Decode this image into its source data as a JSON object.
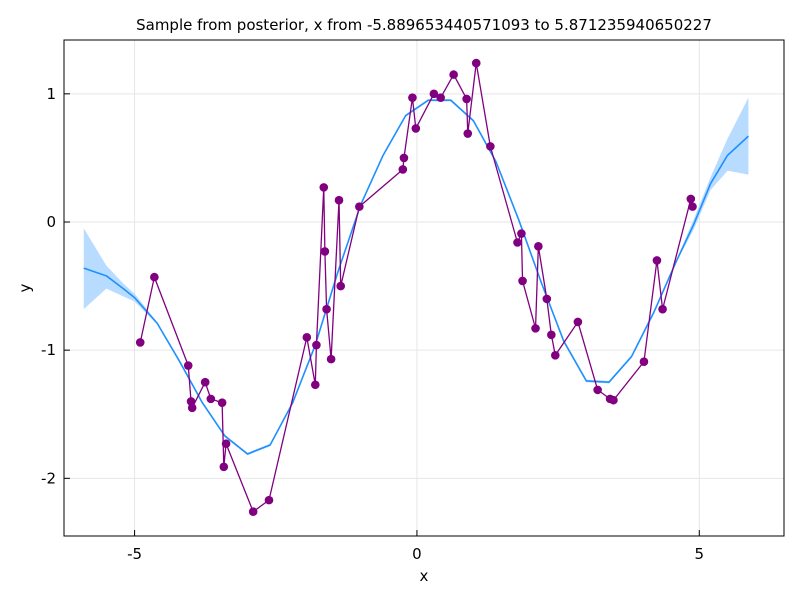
{
  "chart_data": {
    "type": "line",
    "title": "Sample from posterior, x from -5.889653440571093 to 5.871235940650227",
    "xlabel": "x",
    "ylabel": "y",
    "xlim": [
      -6.25,
      6.5
    ],
    "ylim": [
      -2.45,
      1.42
    ],
    "x_ticks": [
      -5,
      0,
      5
    ],
    "x_tick_labels": [
      "-5",
      "0",
      "5"
    ],
    "y_ticks": [
      -2,
      -1,
      0,
      1
    ],
    "y_tick_labels": [
      "-2",
      "-1",
      "0",
      "1"
    ],
    "grid": true,
    "legend": "none",
    "colors": {
      "samples": "#800080",
      "mean": "#1e90ff",
      "band": "#b8dcff",
      "grid": "#e6e6e6",
      "frame": "#000000"
    },
    "series": [
      {
        "kind": "band",
        "x": [
          -5.9,
          -5.5,
          -5.2,
          -5.0,
          -4.6,
          -4.2,
          -3.8,
          -3.4,
          -3.0,
          -2.6,
          -2.2,
          -1.8,
          -1.4,
          -1.0,
          -0.6,
          -0.2,
          0.2,
          0.6,
          1.0,
          1.4,
          1.8,
          2.2,
          2.6,
          3.0,
          3.4,
          3.8,
          4.2,
          4.6,
          4.9,
          5.2,
          5.5,
          5.87
        ],
        "upper": [
          -0.05,
          -0.34,
          -0.48,
          -0.56,
          -0.78,
          -1.08,
          -1.4,
          -1.66,
          -1.8,
          -1.73,
          -1.4,
          -0.95,
          -0.38,
          0.14,
          0.53,
          0.84,
          0.96,
          0.96,
          0.8,
          0.48,
          0.03,
          -0.46,
          -0.92,
          -1.23,
          -1.24,
          -1.04,
          -0.69,
          -0.29,
          0.02,
          0.35,
          0.65,
          0.97
        ],
        "lower": [
          -0.68,
          -0.52,
          -0.58,
          -0.62,
          -0.8,
          -1.1,
          -1.42,
          -1.68,
          -1.82,
          -1.75,
          -1.42,
          -0.97,
          -0.4,
          0.12,
          0.51,
          0.82,
          0.94,
          0.94,
          0.78,
          0.46,
          0.01,
          -0.48,
          -0.94,
          -1.25,
          -1.26,
          -1.06,
          -0.71,
          -0.31,
          -0.06,
          0.25,
          0.4,
          0.37
        ]
      },
      {
        "kind": "mean",
        "x": [
          -5.9,
          -5.5,
          -5.2,
          -5.0,
          -4.6,
          -4.2,
          -3.8,
          -3.4,
          -3.0,
          -2.6,
          -2.2,
          -1.8,
          -1.4,
          -1.0,
          -0.6,
          -0.2,
          0.2,
          0.6,
          1.0,
          1.4,
          1.8,
          2.2,
          2.6,
          3.0,
          3.4,
          3.8,
          4.2,
          4.6,
          4.9,
          5.2,
          5.5,
          5.87
        ],
        "y": [
          -0.36,
          -0.42,
          -0.52,
          -0.59,
          -0.79,
          -1.09,
          -1.41,
          -1.67,
          -1.81,
          -1.74,
          -1.41,
          -0.96,
          -0.39,
          0.13,
          0.52,
          0.83,
          0.95,
          0.95,
          0.79,
          0.47,
          0.02,
          -0.47,
          -0.93,
          -1.24,
          -1.25,
          -1.05,
          -0.7,
          -0.3,
          -0.02,
          0.3,
          0.52,
          0.67
        ]
      },
      {
        "kind": "samples",
        "x": [
          -4.9,
          -4.65,
          -4.05,
          -4.0,
          -3.98,
          -3.75,
          -3.65,
          -3.45,
          -3.42,
          -3.38,
          -2.9,
          -2.62,
          -1.95,
          -1.8,
          -1.78,
          -1.65,
          -1.63,
          -1.6,
          -1.52,
          -1.38,
          -1.35,
          -1.02,
          -0.25,
          -0.23,
          -0.08,
          -0.02,
          0.3,
          0.42,
          0.65,
          0.88,
          0.9,
          1.05,
          1.3,
          1.78,
          1.85,
          1.87,
          2.1,
          2.15,
          2.3,
          2.38,
          2.45,
          2.85,
          3.2,
          3.42,
          3.48,
          4.02,
          4.25,
          4.35,
          4.85,
          4.88
        ],
        "y": [
          -0.94,
          -0.43,
          -1.12,
          -1.4,
          -1.45,
          -1.25,
          -1.38,
          -1.41,
          -1.91,
          -1.73,
          -2.26,
          -2.17,
          -0.9,
          -1.27,
          -0.96,
          0.27,
          -0.23,
          -0.68,
          -1.07,
          0.17,
          -0.5,
          0.12,
          0.41,
          0.5,
          0.97,
          0.73,
          1.0,
          0.97,
          1.15,
          0.96,
          0.69,
          1.24,
          0.59,
          -0.16,
          -0.09,
          -0.46,
          -0.83,
          -0.19,
          -0.6,
          -0.88,
          -1.04,
          -0.78,
          -1.31,
          -1.38,
          -1.39,
          -1.09,
          -0.3,
          -0.68,
          0.18,
          0.12
        ]
      }
    ]
  }
}
